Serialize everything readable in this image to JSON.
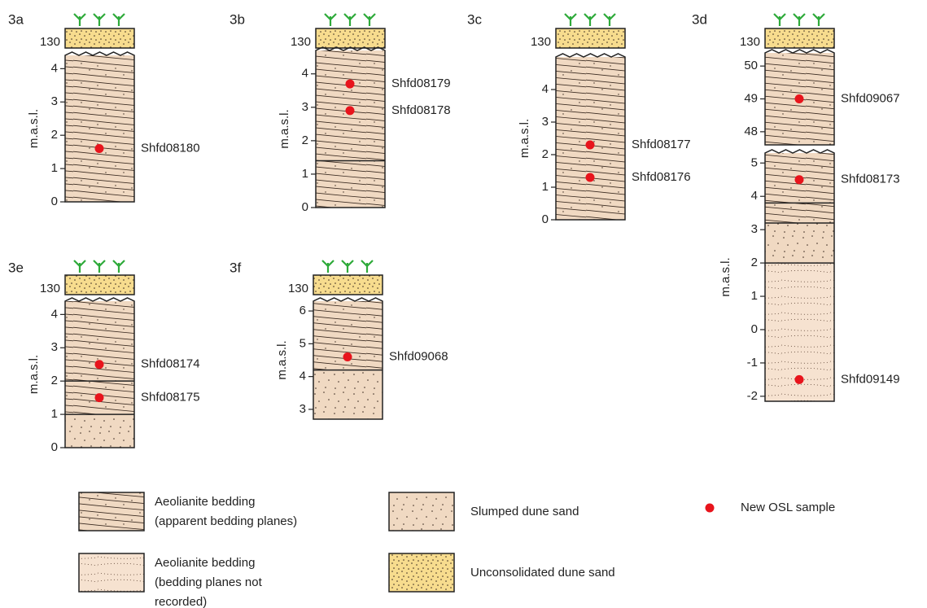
{
  "columns": [
    {
      "label": "3a",
      "top_label": "130",
      "sections": [
        {
          "axis_label": "m.a.s.l.",
          "ylim": [
            0,
            4.4
          ],
          "ticks": [
            0,
            1,
            2,
            3,
            4
          ],
          "units": [
            {
              "facies": 0,
              "from": 0,
              "to": 4.4
            }
          ],
          "samples": [
            {
              "name": "Shfd08180",
              "height": 1.6
            }
          ]
        }
      ]
    },
    {
      "label": "3b",
      "top_label": "130",
      "sections": [
        {
          "axis_label": "m.a.s.l.",
          "ylim": [
            0,
            4.7
          ],
          "ticks": [
            0,
            1,
            2,
            3,
            4
          ],
          "units": [
            {
              "facies": 0,
              "from": 0,
              "to": 1.4
            },
            {
              "facies": 0,
              "from": 1.4,
              "to": 4.7
            }
          ],
          "samples": [
            {
              "name": "Shfd08179",
              "height": 3.7
            },
            {
              "name": "Shfd08178",
              "height": 2.9
            }
          ]
        }
      ]
    },
    {
      "label": "3c",
      "top_label": "130",
      "sections": [
        {
          "axis_label": "m.a.s.l.",
          "ylim": [
            0,
            5
          ],
          "ticks": [
            0,
            1,
            2,
            3,
            4
          ],
          "units": [
            {
              "facies": 0,
              "from": 0,
              "to": 5
            }
          ],
          "samples": [
            {
              "name": "Shfd08177",
              "height": 2.3
            },
            {
              "name": "Shfd08176",
              "height": 1.3
            }
          ]
        }
      ]
    },
    {
      "label": "3d",
      "top_label": "130",
      "sections": [
        {
          "ylim": [
            47.6,
            50.4
          ],
          "ticks": [
            48,
            49,
            50
          ],
          "units": [
            {
              "facies": 0,
              "from": 47.6,
              "to": 50.4
            }
          ],
          "samples": [
            {
              "name": "Shfd09067",
              "height": 49
            }
          ]
        },
        {
          "axis_label": "m.a.s.l.",
          "ylim": [
            -2.15,
            5.3
          ],
          "ticks": [
            -2,
            -1,
            0,
            1,
            2,
            3,
            4,
            5
          ],
          "units": [
            {
              "facies": 1,
              "from": -2.15,
              "to": 2
            },
            {
              "facies": 2,
              "from": 2,
              "to": 3.2
            },
            {
              "facies": 0,
              "from": 3.2,
              "to": 3.8
            },
            {
              "facies": 0,
              "from": 3.8,
              "to": 5.3
            }
          ],
          "samples": [
            {
              "name": "Shfd08173",
              "height": 4.5
            },
            {
              "name": "Shfd09149",
              "height": -1.5
            }
          ]
        }
      ]
    },
    {
      "label": "3e",
      "top_label": "130",
      "sections": [
        {
          "axis_label": "m.a.s.l.",
          "ylim": [
            0,
            4.4
          ],
          "ticks": [
            0,
            1,
            2,
            3,
            4
          ],
          "units": [
            {
              "facies": 2,
              "from": 0,
              "to": 1
            },
            {
              "facies": 0,
              "from": 1,
              "to": 2
            },
            {
              "facies": 0,
              "from": 2,
              "to": 4.4
            }
          ],
          "samples": [
            {
              "name": "Shfd08174",
              "height": 2.5
            },
            {
              "name": "Shfd08175",
              "height": 1.5
            }
          ]
        }
      ]
    },
    {
      "label": "3f",
      "top_label": "130",
      "sections": [
        {
          "axis_label": "m.a.s.l.",
          "ylim": [
            2.7,
            6.3
          ],
          "ticks": [
            3,
            4,
            5,
            6
          ],
          "units": [
            {
              "facies": 2,
              "from": 2.7,
              "to": 4.2
            },
            {
              "facies": 0,
              "from": 4.2,
              "to": 6.3
            }
          ],
          "samples": [
            {
              "name": "Shfd09068",
              "height": 4.6
            }
          ]
        }
      ]
    }
  ],
  "legend": [
    {
      "lines": [
        "Aeolianite bedding",
        "(apparent bedding planes)"
      ]
    },
    {
      "lines": [
        "Aeolianite bedding",
        "(bedding planes not",
        "recorded)"
      ]
    },
    {
      "lines": [
        "Slumped dune sand"
      ]
    },
    {
      "lines": [
        "Unconsolidated dune sand"
      ]
    },
    {
      "lines": [
        "New OSL sample"
      ]
    }
  ]
}
